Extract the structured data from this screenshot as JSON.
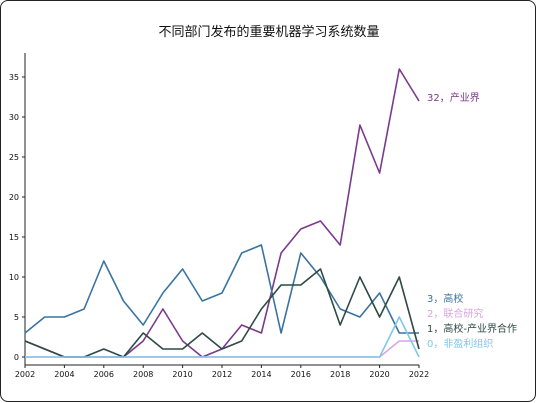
{
  "chart_data": {
    "type": "line",
    "title": "不同部门发布的重要机器学习系统数量",
    "xlabel": "",
    "ylabel": "",
    "x": [
      2002,
      2003,
      2004,
      2005,
      2006,
      2007,
      2008,
      2009,
      2010,
      2011,
      2012,
      2013,
      2014,
      2015,
      2016,
      2017,
      2018,
      2019,
      2020,
      2021,
      2022
    ],
    "xticks": [
      "2002",
      "2004",
      "2006",
      "2008",
      "2010",
      "2012",
      "2014",
      "2016",
      "2018",
      "2020",
      "2022"
    ],
    "yticks": [
      "0",
      "5",
      "10",
      "15",
      "20",
      "25",
      "30",
      "35"
    ],
    "xlim": [
      2002,
      2022
    ],
    "ylim": [
      -1,
      38
    ],
    "grid": false,
    "legend": "end-of-line labels",
    "series": [
      {
        "name": "产业界",
        "label": "32，产业界",
        "color": "#7b3a8c",
        "values": [
          2,
          1,
          0,
          0,
          0,
          0,
          2,
          6,
          2,
          0,
          1,
          4,
          3,
          13,
          16,
          17,
          14,
          29,
          23,
          36,
          32
        ]
      },
      {
        "name": "高校",
        "label": "3，高校",
        "color": "#3b73a0",
        "values": [
          3,
          5,
          5,
          6,
          12,
          7,
          4,
          8,
          11,
          7,
          8,
          13,
          14,
          3,
          13,
          10,
          6,
          5,
          8,
          3,
          3
        ]
      },
      {
        "name": "联合研究",
        "label": "2，联合研究",
        "color": "#d9a5e0",
        "values": [
          0,
          0,
          0,
          0,
          0,
          0,
          0,
          0,
          0,
          0,
          0,
          0,
          0,
          0,
          0,
          0,
          0,
          0,
          0,
          2,
          2
        ]
      },
      {
        "name": "高校-产业界合作",
        "label": "1，高校-产业界合作",
        "color": "#2e4a45",
        "values": [
          2,
          1,
          0,
          0,
          1,
          0,
          3,
          1,
          1,
          3,
          1,
          2,
          6,
          9,
          9,
          11,
          4,
          10,
          5,
          10,
          1
        ]
      },
      {
        "name": "非盈利组织",
        "label": "0，非盈利组织",
        "color": "#7ec8ea",
        "values": [
          0,
          0,
          0,
          0,
          0,
          0,
          0,
          0,
          0,
          0,
          0,
          0,
          0,
          0,
          0,
          0,
          0,
          0,
          0,
          5,
          0
        ]
      }
    ]
  }
}
